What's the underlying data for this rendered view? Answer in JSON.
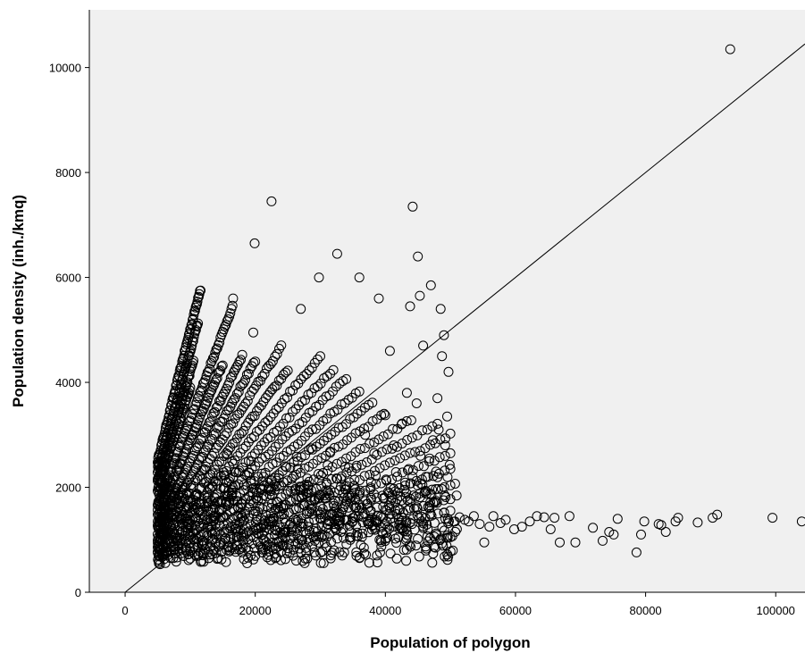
{
  "chart_data": {
    "type": "scatter",
    "xlabel": "Population of polygon",
    "ylabel": "Population density (inh./kmq)",
    "xlim": [
      -5500,
      104500
    ],
    "ylim": [
      0,
      11100
    ],
    "xticks": [
      0,
      20000,
      40000,
      60000,
      80000,
      100000
    ],
    "yticks": [
      0,
      2000,
      4000,
      6000,
      8000,
      10000
    ],
    "grid": false,
    "background": "#f0f0f0",
    "marker": "open-circle",
    "marker_color": "#000000",
    "fit_line": {
      "x": [
        0,
        104500
      ],
      "y": [
        0,
        10450
      ]
    },
    "rays": [
      {
        "slope": 0.5,
        "x_start": 5000,
        "x_end": 11500,
        "n": 70
      },
      {
        "slope": 0.46,
        "x_start": 5000,
        "x_end": 11200,
        "n": 60
      },
      {
        "slope": 0.42,
        "x_start": 5000,
        "x_end": 10500,
        "n": 55
      },
      {
        "slope": 0.39,
        "x_start": 5000,
        "x_end": 10000,
        "n": 50
      },
      {
        "slope": 0.33,
        "x_start": 5000,
        "x_end": 16500,
        "n": 70
      },
      {
        "slope": 0.29,
        "x_start": 5000,
        "x_end": 15000,
        "n": 60
      },
      {
        "slope": 0.25,
        "x_start": 5000,
        "x_end": 18000,
        "n": 60
      },
      {
        "slope": 0.22,
        "x_start": 5000,
        "x_end": 20000,
        "n": 60
      },
      {
        "slope": 0.195,
        "x_start": 5000,
        "x_end": 24000,
        "n": 60
      },
      {
        "slope": 0.17,
        "x_start": 5000,
        "x_end": 25000,
        "n": 60
      },
      {
        "slope": 0.15,
        "x_start": 5000,
        "x_end": 30000,
        "n": 60
      },
      {
        "slope": 0.133,
        "x_start": 6000,
        "x_end": 32000,
        "n": 55
      },
      {
        "slope": 0.12,
        "x_start": 6000,
        "x_end": 34000,
        "n": 55
      },
      {
        "slope": 0.107,
        "x_start": 6000,
        "x_end": 36000,
        "n": 55
      },
      {
        "slope": 0.095,
        "x_start": 7000,
        "x_end": 38000,
        "n": 55
      },
      {
        "slope": 0.085,
        "x_start": 8000,
        "x_end": 40000,
        "n": 50
      },
      {
        "slope": 0.075,
        "x_start": 9000,
        "x_end": 44000,
        "n": 50
      },
      {
        "slope": 0.067,
        "x_start": 10000,
        "x_end": 48000,
        "n": 50
      },
      {
        "slope": 0.06,
        "x_start": 12000,
        "x_end": 50000,
        "n": 50
      },
      {
        "slope": 0.053,
        "x_start": 14000,
        "x_end": 50000,
        "n": 45
      },
      {
        "slope": 0.047,
        "x_start": 16000,
        "x_end": 50000,
        "n": 40
      },
      {
        "slope": 0.041,
        "x_start": 18000,
        "x_end": 50000,
        "n": 35
      },
      {
        "slope": 0.036,
        "x_start": 20000,
        "x_end": 50000,
        "n": 30
      },
      {
        "slope": 0.031,
        "x_start": 22000,
        "x_end": 50000,
        "n": 30
      }
    ],
    "points": [
      [
        93000,
        10350
      ],
      [
        22500,
        7450
      ],
      [
        44200,
        7350
      ],
      [
        19900,
        6650
      ],
      [
        32600,
        6450
      ],
      [
        45000,
        6400
      ],
      [
        29800,
        6000
      ],
      [
        36000,
        6000
      ],
      [
        16600,
        5600
      ],
      [
        11600,
        5750
      ],
      [
        39000,
        5600
      ],
      [
        47000,
        5850
      ],
      [
        45300,
        5650
      ],
      [
        48500,
        5400
      ],
      [
        43800,
        5450
      ],
      [
        27000,
        5400
      ],
      [
        19700,
        4950
      ],
      [
        49000,
        4900
      ],
      [
        45800,
        4700
      ],
      [
        40700,
        4600
      ],
      [
        43300,
        3800
      ],
      [
        48000,
        3700
      ],
      [
        99500,
        1420
      ],
      [
        104000,
        1350
      ],
      [
        91000,
        1480
      ],
      [
        90300,
        1420
      ],
      [
        88000,
        1330
      ],
      [
        85000,
        1420
      ],
      [
        84600,
        1350
      ],
      [
        83100,
        1150
      ],
      [
        82400,
        1280
      ],
      [
        82000,
        1300
      ],
      [
        79800,
        1350
      ],
      [
        79300,
        1100
      ],
      [
        78600,
        760
      ],
      [
        75700,
        1400
      ],
      [
        75100,
        1100
      ],
      [
        74400,
        1150
      ],
      [
        73400,
        980
      ],
      [
        71900,
        1230
      ],
      [
        69200,
        950
      ],
      [
        68300,
        1450
      ],
      [
        66800,
        950
      ],
      [
        66000,
        1420
      ],
      [
        65400,
        1200
      ],
      [
        64400,
        1430
      ],
      [
        63300,
        1450
      ],
      [
        62200,
        1350
      ],
      [
        61000,
        1250
      ],
      [
        59800,
        1200
      ],
      [
        58500,
        1380
      ],
      [
        57700,
        1320
      ],
      [
        56600,
        1450
      ],
      [
        56000,
        1250
      ],
      [
        55200,
        950
      ],
      [
        54500,
        1300
      ],
      [
        53600,
        1450
      ],
      [
        52800,
        1350
      ],
      [
        52200,
        1380
      ],
      [
        51400,
        1430
      ],
      [
        50700,
        1350
      ],
      [
        50000,
        1050
      ],
      [
        49600,
        1400
      ],
      [
        48400,
        1000
      ],
      [
        47700,
        850
      ],
      [
        46500,
        1200
      ],
      [
        45600,
        1350
      ],
      [
        44100,
        1300
      ],
      [
        43700,
        900
      ],
      [
        43200,
        600
      ],
      [
        42000,
        1050
      ],
      [
        40800,
        1400
      ],
      [
        39500,
        1150
      ],
      [
        38700,
        700
      ],
      [
        37500,
        1300
      ],
      [
        36700,
        850
      ],
      [
        35400,
        1450
      ],
      [
        34600,
        1000
      ],
      [
        33200,
        1150
      ],
      [
        32100,
        800
      ],
      [
        31400,
        1350
      ],
      [
        30200,
        1050
      ],
      [
        29300,
        700
      ],
      [
        28100,
        1250
      ],
      [
        27200,
        900
      ],
      [
        26000,
        1400
      ],
      [
        25300,
        750
      ],
      [
        24200,
        1100
      ],
      [
        23100,
        650
      ],
      [
        22400,
        1350
      ],
      [
        21000,
        850
      ],
      [
        20100,
        1200
      ],
      [
        19300,
        700
      ],
      [
        18200,
        1050
      ],
      [
        17400,
        1450
      ],
      [
        16100,
        800
      ],
      [
        15200,
        1150
      ],
      [
        14300,
        650
      ],
      [
        13200,
        1350
      ],
      [
        12100,
        950
      ],
      [
        11300,
        700
      ],
      [
        10200,
        1250
      ],
      [
        9400,
        850
      ],
      [
        8300,
        1400
      ],
      [
        7400,
        650
      ],
      [
        6600,
        1100
      ],
      [
        5800,
        900
      ],
      [
        5200,
        550
      ],
      [
        46800,
        2550
      ],
      [
        47300,
        2900
      ],
      [
        48200,
        3100
      ],
      [
        44800,
        3600
      ],
      [
        42500,
        3200
      ],
      [
        41300,
        2800
      ],
      [
        39800,
        3400
      ],
      [
        38300,
        2650
      ],
      [
        36900,
        3000
      ],
      [
        46200,
        2200
      ],
      [
        43600,
        2350
      ],
      [
        40100,
        2150
      ],
      [
        41900,
        1900
      ],
      [
        37800,
        2100
      ],
      [
        49200,
        2800
      ],
      [
        49500,
        3350
      ],
      [
        48700,
        4500
      ],
      [
        49700,
        4200
      ],
      [
        47800,
        2300
      ],
      [
        45400,
        2600
      ]
    ]
  }
}
